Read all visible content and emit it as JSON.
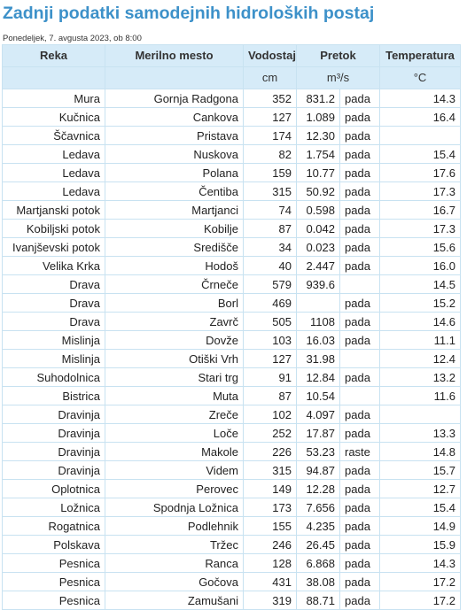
{
  "page": {
    "title": "Zadnji podatki samodejnih hidroloških postaj",
    "subtitle": "Ponedeljek, 7. avgusta 2023, ob 8:00"
  },
  "table": {
    "headers": {
      "river": "Reka",
      "station": "Merilno mesto",
      "level": "Vodostaj",
      "flow": "Pretok",
      "temp": "Temperatura"
    },
    "units": {
      "level": "cm",
      "flow": "m³/s",
      "temp": "°C"
    },
    "rows": [
      {
        "river": "Mura",
        "station": "Gornja Radgona",
        "level": "352",
        "flow": "831.2",
        "trend": "pada",
        "temp": "14.3"
      },
      {
        "river": "Kučnica",
        "station": "Cankova",
        "level": "127",
        "flow": "1.089",
        "trend": "pada",
        "temp": "16.4"
      },
      {
        "river": "Ščavnica",
        "station": "Pristava",
        "level": "174",
        "flow": "12.30",
        "trend": "pada",
        "temp": ""
      },
      {
        "river": "Ledava",
        "station": "Nuskova",
        "level": "82",
        "flow": "1.754",
        "trend": "pada",
        "temp": "15.4"
      },
      {
        "river": "Ledava",
        "station": "Polana",
        "level": "159",
        "flow": "10.77",
        "trend": "pada",
        "temp": "17.6"
      },
      {
        "river": "Ledava",
        "station": "Čentiba",
        "level": "315",
        "flow": "50.92",
        "trend": "pada",
        "temp": "17.3"
      },
      {
        "river": "Martjanski potok",
        "station": "Martjanci",
        "level": "74",
        "flow": "0.598",
        "trend": "pada",
        "temp": "16.7"
      },
      {
        "river": "Kobiljski potok",
        "station": "Kobilje",
        "level": "87",
        "flow": "0.042",
        "trend": "pada",
        "temp": "17.3"
      },
      {
        "river": "Ivanjševski potok",
        "station": "Središče",
        "level": "34",
        "flow": "0.023",
        "trend": "pada",
        "temp": "15.6"
      },
      {
        "river": "Velika Krka",
        "station": "Hodoš",
        "level": "40",
        "flow": "2.447",
        "trend": "pada",
        "temp": "16.0"
      },
      {
        "river": "Drava",
        "station": "Črneče",
        "level": "579",
        "flow": "939.6",
        "trend": "",
        "temp": "14.5"
      },
      {
        "river": "Drava",
        "station": "Borl",
        "level": "469",
        "flow": "",
        "trend": "pada",
        "temp": "15.2"
      },
      {
        "river": "Drava",
        "station": "Zavrč",
        "level": "505",
        "flow": "1108",
        "trend": "pada",
        "temp": "14.6"
      },
      {
        "river": "Mislinja",
        "station": "Dovže",
        "level": "103",
        "flow": "16.03",
        "trend": "pada",
        "temp": "11.1"
      },
      {
        "river": "Mislinja",
        "station": "Otiški Vrh",
        "level": "127",
        "flow": "31.98",
        "trend": "",
        "temp": "12.4"
      },
      {
        "river": "Suhodolnica",
        "station": "Stari trg",
        "level": "91",
        "flow": "12.84",
        "trend": "pada",
        "temp": "13.2"
      },
      {
        "river": "Bistrica",
        "station": "Muta",
        "level": "87",
        "flow": "10.54",
        "trend": "",
        "temp": "11.6"
      },
      {
        "river": "Dravinja",
        "station": "Zreče",
        "level": "102",
        "flow": "4.097",
        "trend": "pada",
        "temp": ""
      },
      {
        "river": "Dravinja",
        "station": "Loče",
        "level": "252",
        "flow": "17.87",
        "trend": "pada",
        "temp": "13.3"
      },
      {
        "river": "Dravinja",
        "station": "Makole",
        "level": "226",
        "flow": "53.23",
        "trend": "raste",
        "temp": "14.8"
      },
      {
        "river": "Dravinja",
        "station": "Videm",
        "level": "315",
        "flow": "94.87",
        "trend": "pada",
        "temp": "15.7"
      },
      {
        "river": "Oplotnica",
        "station": "Perovec",
        "level": "149",
        "flow": "12.28",
        "trend": "pada",
        "temp": "12.7"
      },
      {
        "river": "Ložnica",
        "station": "Spodnja Ložnica",
        "level": "173",
        "flow": "7.656",
        "trend": "pada",
        "temp": "15.4"
      },
      {
        "river": "Rogatnica",
        "station": "Podlehnik",
        "level": "155",
        "flow": "4.235",
        "trend": "pada",
        "temp": "14.9"
      },
      {
        "river": "Polskava",
        "station": "Tržec",
        "level": "246",
        "flow": "26.45",
        "trend": "pada",
        "temp": "15.9"
      },
      {
        "river": "Pesnica",
        "station": "Ranca",
        "level": "128",
        "flow": "6.868",
        "trend": "pada",
        "temp": "14.3"
      },
      {
        "river": "Pesnica",
        "station": "Gočova",
        "level": "431",
        "flow": "38.08",
        "trend": "pada",
        "temp": "17.2"
      },
      {
        "river": "Pesnica",
        "station": "Zamušani",
        "level": "319",
        "flow": "88.71",
        "trend": "pada",
        "temp": "17.2"
      }
    ]
  }
}
